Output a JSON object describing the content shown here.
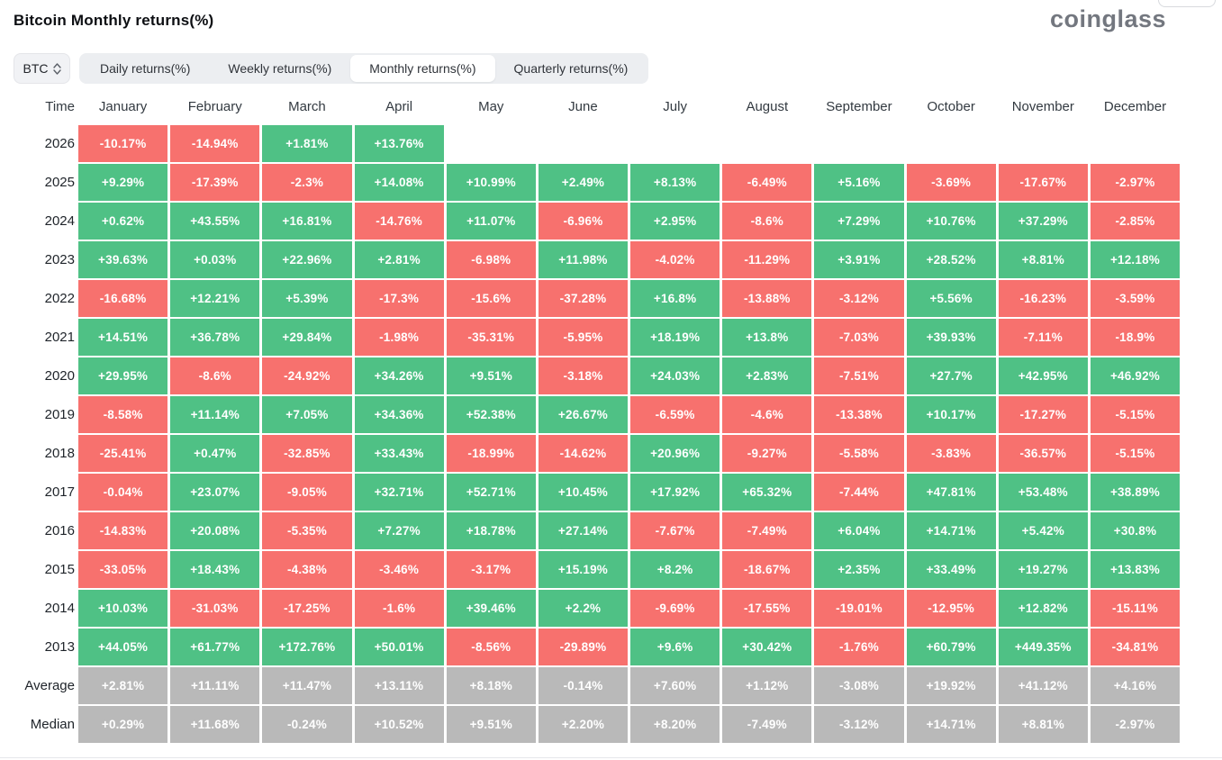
{
  "header": {
    "title": "Bitcoin Monthly returns(%)",
    "brand": "coinglass"
  },
  "controls": {
    "symbol_select": {
      "value": "BTC",
      "icon": "updown-chevron-icon"
    },
    "tabs": [
      {
        "label": "Daily returns(%)",
        "active": false
      },
      {
        "label": "Weekly returns(%)",
        "active": false
      },
      {
        "label": "Monthly returns(%)",
        "active": true
      },
      {
        "label": "Quarterly returns(%)",
        "active": false
      }
    ]
  },
  "chart_data": {
    "type": "heatmap",
    "title": "Bitcoin Monthly returns(%)",
    "unit": "%",
    "columns": [
      "Time",
      "January",
      "February",
      "March",
      "April",
      "May",
      "June",
      "July",
      "August",
      "September",
      "October",
      "November",
      "December"
    ],
    "colors": {
      "positive": "#4FC185",
      "negative": "#F7716E",
      "summary": "#B9B9B9"
    },
    "rows": [
      {
        "label": "2026",
        "style": "year",
        "values": [
          "-10.17%",
          "-14.94%",
          "+1.81%",
          "+13.76%",
          null,
          null,
          null,
          null,
          null,
          null,
          null,
          null
        ]
      },
      {
        "label": "2025",
        "style": "year",
        "values": [
          "+9.29%",
          "-17.39%",
          "-2.3%",
          "+14.08%",
          "+10.99%",
          "+2.49%",
          "+8.13%",
          "-6.49%",
          "+5.16%",
          "-3.69%",
          "-17.67%",
          "-2.97%"
        ]
      },
      {
        "label": "2024",
        "style": "year",
        "values": [
          "+0.62%",
          "+43.55%",
          "+16.81%",
          "-14.76%",
          "+11.07%",
          "-6.96%",
          "+2.95%",
          "-8.6%",
          "+7.29%",
          "+10.76%",
          "+37.29%",
          "-2.85%"
        ]
      },
      {
        "label": "2023",
        "style": "year",
        "values": [
          "+39.63%",
          "+0.03%",
          "+22.96%",
          "+2.81%",
          "-6.98%",
          "+11.98%",
          "-4.02%",
          "-11.29%",
          "+3.91%",
          "+28.52%",
          "+8.81%",
          "+12.18%"
        ]
      },
      {
        "label": "2022",
        "style": "year",
        "values": [
          "-16.68%",
          "+12.21%",
          "+5.39%",
          "-17.3%",
          "-15.6%",
          "-37.28%",
          "+16.8%",
          "-13.88%",
          "-3.12%",
          "+5.56%",
          "-16.23%",
          "-3.59%"
        ]
      },
      {
        "label": "2021",
        "style": "year",
        "values": [
          "+14.51%",
          "+36.78%",
          "+29.84%",
          "-1.98%",
          "-35.31%",
          "-5.95%",
          "+18.19%",
          "+13.8%",
          "-7.03%",
          "+39.93%",
          "-7.11%",
          "-18.9%"
        ]
      },
      {
        "label": "2020",
        "style": "year",
        "values": [
          "+29.95%",
          "-8.6%",
          "-24.92%",
          "+34.26%",
          "+9.51%",
          "-3.18%",
          "+24.03%",
          "+2.83%",
          "-7.51%",
          "+27.7%",
          "+42.95%",
          "+46.92%"
        ]
      },
      {
        "label": "2019",
        "style": "year",
        "values": [
          "-8.58%",
          "+11.14%",
          "+7.05%",
          "+34.36%",
          "+52.38%",
          "+26.67%",
          "-6.59%",
          "-4.6%",
          "-13.38%",
          "+10.17%",
          "-17.27%",
          "-5.15%"
        ]
      },
      {
        "label": "2018",
        "style": "year",
        "values": [
          "-25.41%",
          "+0.47%",
          "-32.85%",
          "+33.43%",
          "-18.99%",
          "-14.62%",
          "+20.96%",
          "-9.27%",
          "-5.58%",
          "-3.83%",
          "-36.57%",
          "-5.15%"
        ]
      },
      {
        "label": "2017",
        "style": "year",
        "values": [
          "-0.04%",
          "+23.07%",
          "-9.05%",
          "+32.71%",
          "+52.71%",
          "+10.45%",
          "+17.92%",
          "+65.32%",
          "-7.44%",
          "+47.81%",
          "+53.48%",
          "+38.89%"
        ]
      },
      {
        "label": "2016",
        "style": "year",
        "values": [
          "-14.83%",
          "+20.08%",
          "-5.35%",
          "+7.27%",
          "+18.78%",
          "+27.14%",
          "-7.67%",
          "-7.49%",
          "+6.04%",
          "+14.71%",
          "+5.42%",
          "+30.8%"
        ]
      },
      {
        "label": "2015",
        "style": "year",
        "values": [
          "-33.05%",
          "+18.43%",
          "-4.38%",
          "-3.46%",
          "-3.17%",
          "+15.19%",
          "+8.2%",
          "-18.67%",
          "+2.35%",
          "+33.49%",
          "+19.27%",
          "+13.83%"
        ]
      },
      {
        "label": "2014",
        "style": "year",
        "values": [
          "+10.03%",
          "-31.03%",
          "-17.25%",
          "-1.6%",
          "+39.46%",
          "+2.2%",
          "-9.69%",
          "-17.55%",
          "-19.01%",
          "-12.95%",
          "+12.82%",
          "-15.11%"
        ]
      },
      {
        "label": "2013",
        "style": "year",
        "values": [
          "+44.05%",
          "+61.77%",
          "+172.76%",
          "+50.01%",
          "-8.56%",
          "-29.89%",
          "+9.6%",
          "+30.42%",
          "-1.76%",
          "+60.79%",
          "+449.35%",
          "-34.81%"
        ]
      },
      {
        "label": "Average",
        "style": "summary",
        "values": [
          "+2.81%",
          "+11.11%",
          "+11.47%",
          "+13.11%",
          "+8.18%",
          "-0.14%",
          "+7.60%",
          "+1.12%",
          "-3.08%",
          "+19.92%",
          "+41.12%",
          "+4.16%"
        ]
      },
      {
        "label": "Median",
        "style": "summary",
        "values": [
          "+0.29%",
          "+11.68%",
          "-0.24%",
          "+10.52%",
          "+9.51%",
          "+2.20%",
          "+8.20%",
          "-7.49%",
          "-3.12%",
          "+14.71%",
          "+8.81%",
          "-2.97%"
        ]
      }
    ]
  }
}
